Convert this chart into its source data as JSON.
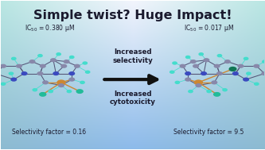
{
  "title": "Simple twist? Huge Impact!",
  "title_fontsize": 11.5,
  "title_color": "#1a1a2e",
  "left_ic50": "IC$_{50}$ = 0.380 μM",
  "right_ic50": "IC$_{50}$ = 0.017 μM",
  "left_selectivity": "Selectivity factor = 0.16",
  "right_selectivity": "Selectivity factor = 9.5",
  "arrow_label_top": "Increased\nselectivity",
  "arrow_label_bottom": "Increased\ncytotoxicity",
  "text_color": "#1a1a2e",
  "arrow_color": "#111111",
  "label_fontsize": 5.5,
  "arrow_label_fontsize": 6.2,
  "figsize": [
    3.33,
    1.89
  ],
  "dpi": 100,
  "N_color": "#3a4abf",
  "C_color": "#8888aa",
  "Cu_color": "#cc8833",
  "H_color": "#44ddcc",
  "Cl_color": "#22bb99",
  "bond_color": "#555577"
}
